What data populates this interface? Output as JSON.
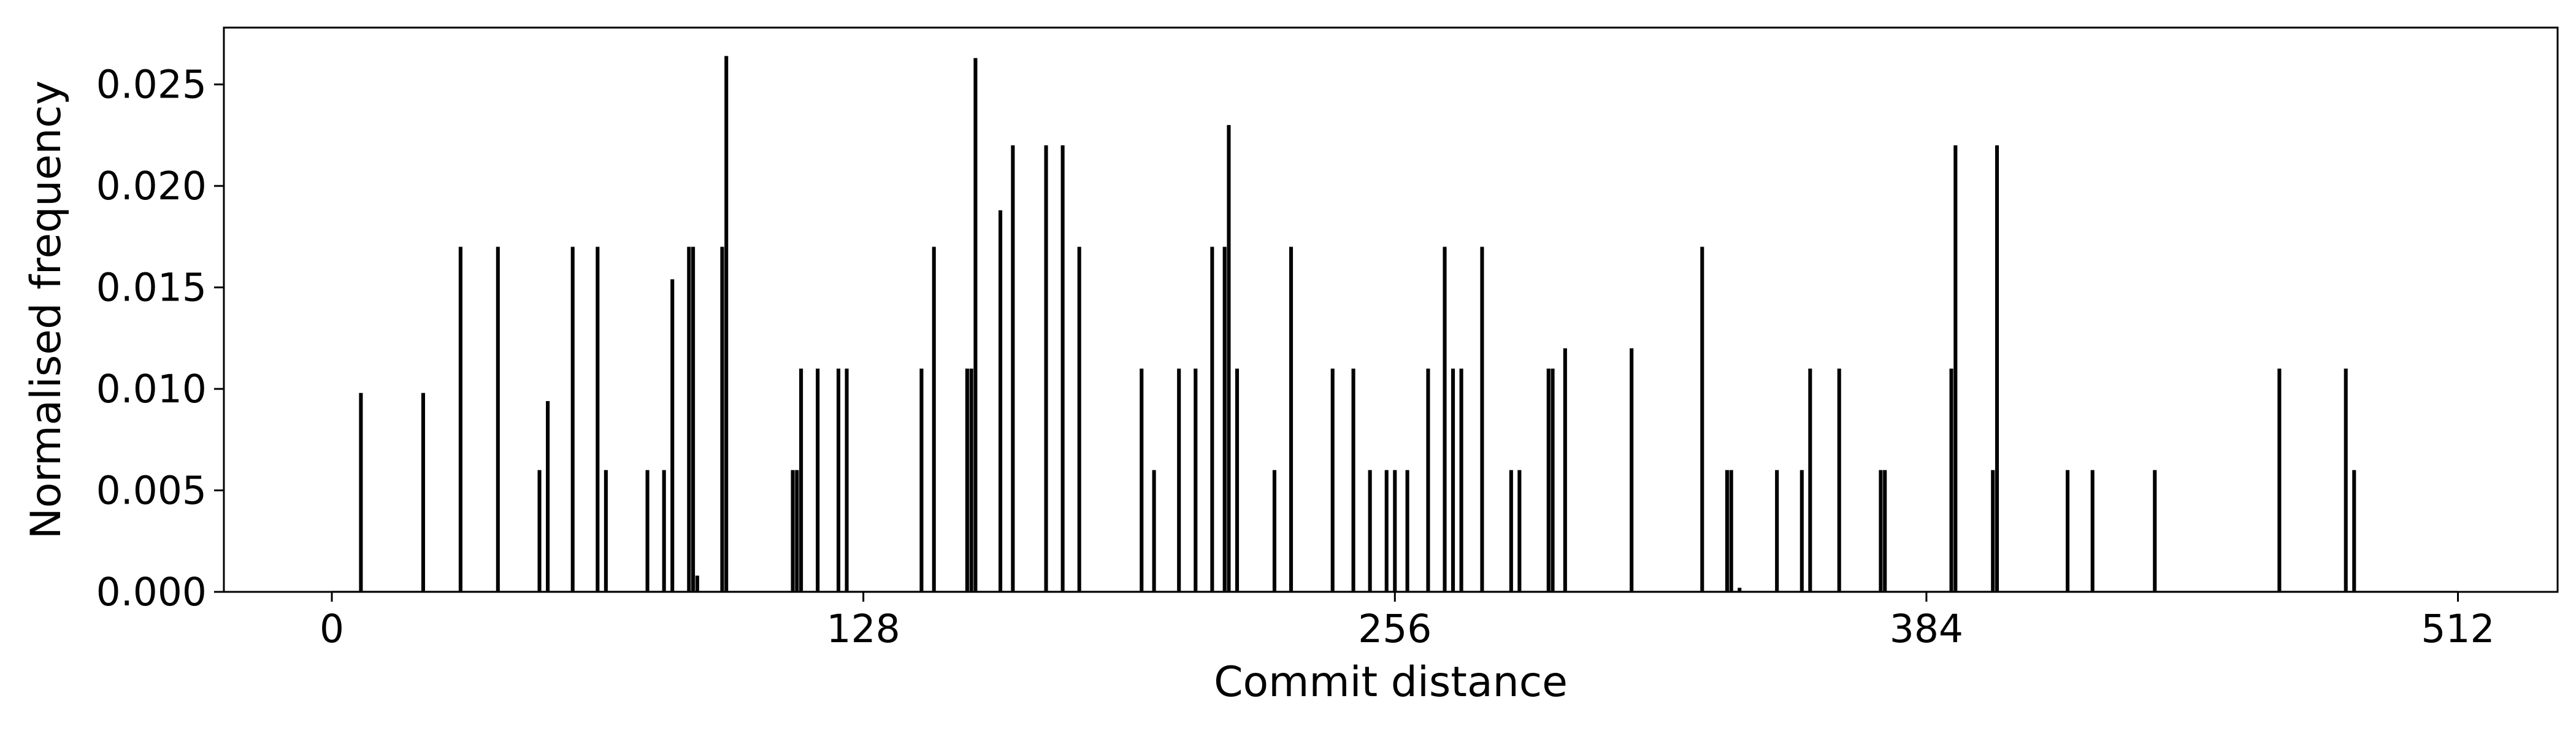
{
  "chart_data": {
    "type": "bar",
    "title": "",
    "xlabel": "Commit distance",
    "ylabel": "Normalised frequency",
    "xlim": [
      -26,
      536
    ],
    "ylim": [
      0,
      0.0278
    ],
    "xticks": [
      0,
      128,
      256,
      384,
      512
    ],
    "xtick_labels": [
      "0",
      "128",
      "256",
      "384",
      "512"
    ],
    "yticks": [
      0,
      0.005,
      0.01,
      0.015,
      0.02,
      0.025
    ],
    "ytick_labels": [
      "0.000",
      "0.005",
      "0.010",
      "0.015",
      "0.020",
      "0.025"
    ],
    "grid": false,
    "legend": "none",
    "bar_color": "#000000",
    "x": [
      7,
      22,
      31,
      40,
      50,
      52,
      58,
      64,
      66,
      76,
      80,
      82,
      86,
      87,
      88,
      94,
      95,
      111,
      112,
      113,
      117,
      122,
      124,
      142,
      145,
      153,
      154,
      155,
      161,
      164,
      172,
      176,
      180,
      195,
      198,
      204,
      208,
      212,
      215,
      216,
      218,
      227,
      231,
      241,
      246,
      250,
      254,
      256,
      259,
      264,
      268,
      270,
      272,
      277,
      284,
      286,
      293,
      294,
      297,
      313,
      330,
      336,
      337,
      339,
      348,
      354,
      356,
      363,
      373,
      374,
      390,
      391,
      400,
      401,
      418,
      424,
      439,
      469,
      485,
      487
    ],
    "values": [
      0.0098,
      0.0098,
      0.017,
      0.017,
      0.006,
      0.0094,
      0.017,
      0.017,
      0.006,
      0.006,
      0.006,
      0.0154,
      0.017,
      0.017,
      0.0008,
      0.017,
      0.0264,
      0.006,
      0.006,
      0.011,
      0.011,
      0.011,
      0.011,
      0.011,
      0.017,
      0.011,
      0.011,
      0.0263,
      0.0188,
      0.022,
      0.022,
      0.022,
      0.017,
      0.011,
      0.006,
      0.011,
      0.011,
      0.017,
      0.017,
      0.023,
      0.011,
      0.006,
      0.017,
      0.011,
      0.011,
      0.006,
      0.006,
      0.006,
      0.006,
      0.011,
      0.017,
      0.011,
      0.011,
      0.017,
      0.006,
      0.006,
      0.011,
      0.011,
      0.012,
      0.012,
      0.017,
      0.006,
      0.006,
      0.0002,
      0.006,
      0.006,
      0.011,
      0.011,
      0.006,
      0.006,
      0.011,
      0.022,
      0.006,
      0.022,
      0.006,
      0.006,
      0.006,
      0.011,
      0.011,
      0.006
    ]
  }
}
